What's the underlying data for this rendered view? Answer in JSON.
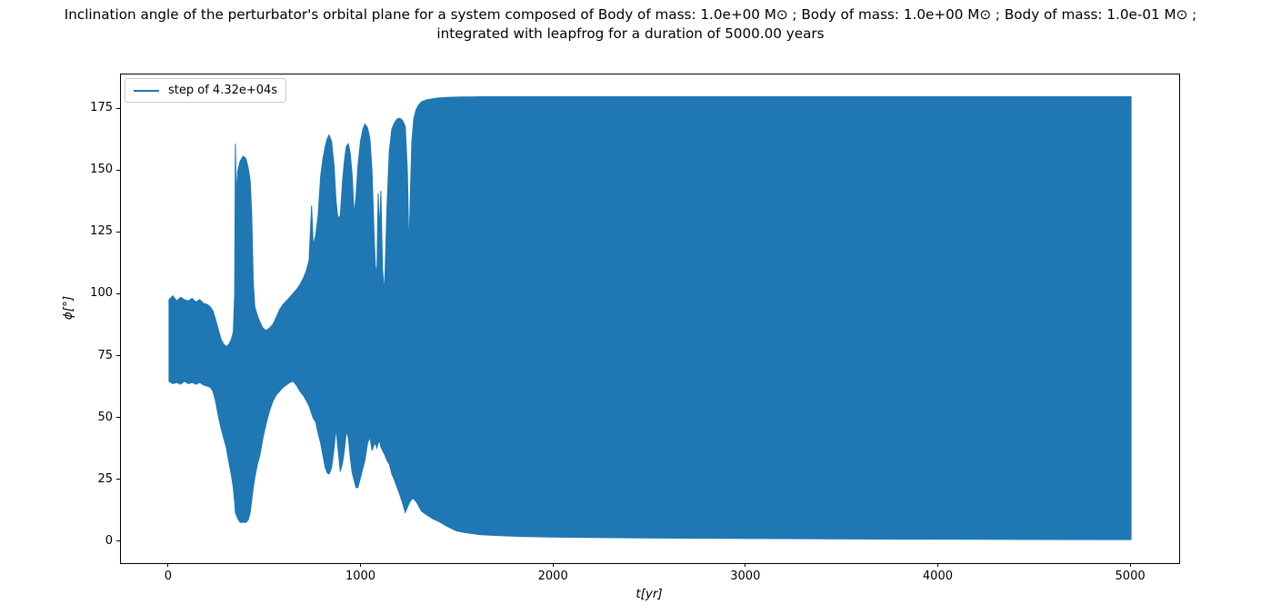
{
  "chart_data": {
    "type": "area",
    "title": "Inclination angle of the perturbator's orbital plane for a system composed of Body of mass: 1.0e+00 M⊙ ; Body of mass: 1.0e+00 M⊙ ; Body of mass: 1.0e-01 M⊙ ; integrated with leapfrog for a duration of 5000.00 years",
    "title_lines": [
      "Inclination angle of the perturbator's orbital plane for a system composed of Body of mass: 1.0e+00 M⊙ ; Body of mass: 1.0e+00 M⊙ ; Body of mass: 1.0e-01 M⊙ ;",
      "integrated with leapfrog for a duration of 5000.00 years"
    ],
    "xlabel": "t[yr]",
    "ylabel": "ϕ[°]",
    "xlim": [
      -250,
      5250
    ],
    "ylim": [
      -8.5,
      189
    ],
    "x_ticks": [
      0,
      1000,
      2000,
      3000,
      4000,
      5000
    ],
    "y_ticks": [
      0,
      25,
      50,
      75,
      100,
      125,
      150,
      175
    ],
    "grid": false,
    "legend": {
      "position": "upper left",
      "entries": [
        {
          "label": "step of 4.32e+04s",
          "color": "#1f77b4"
        }
      ]
    },
    "series": [
      {
        "name": "step of 4.32e+04s",
        "color": "#1f77b4",
        "representation": "dense oscillation shown as filled envelope; points are [t_years, phi_min_deg, phi_max_deg]",
        "envelope": [
          [
            0,
            65,
            98
          ],
          [
            20,
            64,
            99.5
          ],
          [
            40,
            64.5,
            97.5
          ],
          [
            60,
            63.8,
            99
          ],
          [
            80,
            65,
            98
          ],
          [
            100,
            64,
            97.5
          ],
          [
            120,
            64.5,
            98.5
          ],
          [
            140,
            63.8,
            97
          ],
          [
            160,
            64.5,
            98
          ],
          [
            180,
            63.5,
            96.5
          ],
          [
            200,
            63,
            96
          ],
          [
            215,
            62.5,
            95
          ],
          [
            228,
            61,
            93.5
          ],
          [
            242,
            57,
            90
          ],
          [
            256,
            51,
            86
          ],
          [
            270,
            46,
            82
          ],
          [
            284,
            42,
            80
          ],
          [
            298,
            38,
            79
          ],
          [
            312,
            32,
            80
          ],
          [
            324,
            27,
            82
          ],
          [
            334,
            22,
            85
          ],
          [
            341,
            16,
            100
          ],
          [
            345,
            12,
            161
          ],
          [
            350,
            11,
            140
          ],
          [
            357,
            9.5,
            150
          ],
          [
            370,
            8,
            154
          ],
          [
            385,
            8,
            156
          ],
          [
            400,
            8,
            155
          ],
          [
            412,
            9,
            151
          ],
          [
            422,
            12,
            146
          ],
          [
            430,
            17,
            132
          ],
          [
            438,
            22,
            105
          ],
          [
            446,
            26,
            95
          ],
          [
            458,
            31,
            92
          ],
          [
            472,
            35,
            89
          ],
          [
            488,
            42,
            86.5
          ],
          [
            505,
            48,
            85.5
          ],
          [
            522,
            53,
            86.5
          ],
          [
            540,
            57,
            88
          ],
          [
            558,
            59.5,
            91
          ],
          [
            575,
            61,
            94
          ],
          [
            592,
            62.5,
            96
          ],
          [
            610,
            63.5,
            97.5
          ],
          [
            628,
            64.5,
            99
          ],
          [
            645,
            65,
            100.5
          ],
          [
            662,
            63.5,
            102
          ],
          [
            680,
            61,
            104
          ],
          [
            700,
            59,
            107
          ],
          [
            715,
            57,
            110
          ],
          [
            728,
            55,
            114
          ],
          [
            741,
            52,
            136
          ],
          [
            750,
            50,
            120
          ],
          [
            762,
            48.5,
            124
          ],
          [
            775,
            44,
            132
          ],
          [
            788,
            40,
            148
          ],
          [
            800,
            35,
            155
          ],
          [
            812,
            30,
            160
          ],
          [
            822,
            28,
            163
          ],
          [
            832,
            27.5,
            164.5
          ],
          [
            845,
            30,
            162
          ],
          [
            858,
            38,
            152
          ],
          [
            868,
            46,
            138
          ],
          [
            878,
            38,
            131
          ],
          [
            890,
            28.5,
            132
          ],
          [
            902,
            32,
            146
          ],
          [
            913,
            38,
            155
          ],
          [
            922,
            45,
            160
          ],
          [
            932,
            42,
            161
          ],
          [
            942,
            34,
            157
          ],
          [
            952,
            28,
            148
          ],
          [
            962,
            25,
            132
          ],
          [
            972,
            22,
            140
          ],
          [
            982,
            22,
            152
          ],
          [
            995,
            26,
            162
          ],
          [
            1008,
            30,
            167
          ],
          [
            1018,
            33,
            169
          ],
          [
            1032,
            40,
            167.5
          ],
          [
            1044,
            42.5,
            163
          ],
          [
            1055,
            37,
            150
          ],
          [
            1064,
            39,
            128
          ],
          [
            1072,
            40,
            112
          ],
          [
            1080,
            38,
            108
          ],
          [
            1087,
            40,
            141
          ],
          [
            1094,
            41,
            125
          ],
          [
            1101,
            38.5,
            142
          ],
          [
            1110,
            37,
            110
          ],
          [
            1120,
            35.5,
            101
          ],
          [
            1133,
            33,
            136
          ],
          [
            1145,
            31.5,
            158
          ],
          [
            1158,
            27.5,
            167
          ],
          [
            1172,
            25,
            169.5
          ],
          [
            1186,
            22,
            171
          ],
          [
            1200,
            19,
            171.3
          ],
          [
            1213,
            16,
            170.5
          ],
          [
            1228,
            12,
            168
          ],
          [
            1239,
            14,
            150
          ],
          [
            1247,
            15.5,
            118
          ],
          [
            1254,
            16.5,
            140
          ],
          [
            1262,
            17.5,
            162
          ],
          [
            1272,
            17.5,
            171
          ],
          [
            1283,
            16.5,
            174.5
          ],
          [
            1295,
            15,
            176.5
          ],
          [
            1312,
            12.5,
            178
          ],
          [
            1340,
            11,
            178.8
          ],
          [
            1370,
            9.5,
            179.2
          ],
          [
            1400,
            8.4,
            179.5
          ],
          [
            1445,
            6.4,
            179.7
          ],
          [
            1495,
            4.5,
            179.85
          ],
          [
            1550,
            3.7,
            179.95
          ],
          [
            1620,
            3,
            180
          ],
          [
            1720,
            2.6,
            180
          ],
          [
            1830,
            2.3,
            180
          ],
          [
            1980,
            2.05,
            180
          ],
          [
            2200,
            1.85,
            180
          ],
          [
            2450,
            1.7,
            180
          ],
          [
            2750,
            1.55,
            180
          ],
          [
            3050,
            1.45,
            180
          ],
          [
            3400,
            1.32,
            180
          ],
          [
            3800,
            1.2,
            180
          ],
          [
            4200,
            1.12,
            180
          ],
          [
            4600,
            1.05,
            180
          ],
          [
            5000,
            1,
            180
          ]
        ]
      }
    ]
  }
}
